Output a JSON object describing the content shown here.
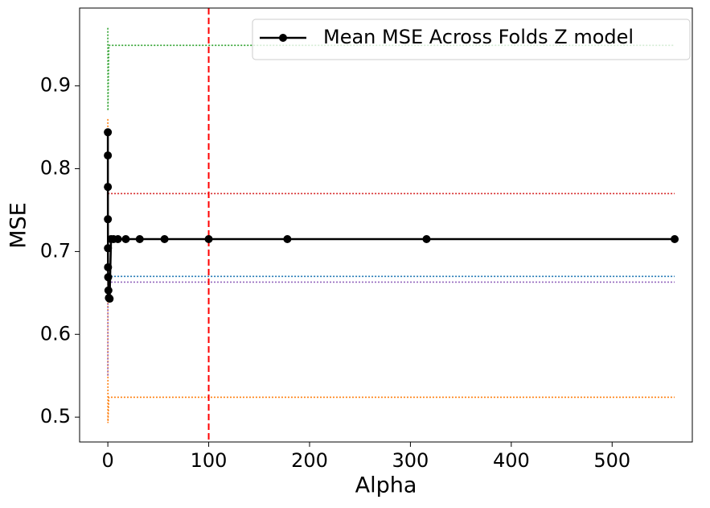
{
  "chart_data": {
    "type": "line",
    "x_label": "Alpha",
    "y_label": "MSE",
    "xlim": [
      -28,
      579.5
    ],
    "ylim": [
      0.47,
      0.994
    ],
    "xticks": [
      0,
      100,
      200,
      300,
      400,
      500
    ],
    "yticks": [
      0.5,
      0.6,
      0.7,
      0.8,
      0.9
    ],
    "legend": "upper right",
    "series": [
      {
        "name": "Mean MSE Across Folds Z model",
        "color": "#000000",
        "x": [
          0.01,
          0.0178,
          0.0316,
          0.0562,
          0.1,
          0.178,
          0.316,
          0.562,
          1,
          1.78,
          3.16,
          5.62,
          10,
          17.8,
          31.6,
          56.2,
          100,
          178,
          316,
          562
        ],
        "values": [
          0.844,
          0.816,
          0.778,
          0.739,
          0.704,
          0.681,
          0.669,
          0.653,
          0.644,
          0.643,
          0.715,
          0.715,
          0.715,
          0.715,
          0.715,
          0.715,
          0.715,
          0.715,
          0.715,
          0.715
        ]
      }
    ],
    "fold_lines": [
      {
        "color": "#2ca02c",
        "x": [
          0,
          0.1,
          1,
          562
        ],
        "values": [
          0.97,
          0.87,
          0.949,
          0.949
        ]
      },
      {
        "color": "#ff7f0e",
        "x": [
          0,
          0.1,
          1,
          562
        ],
        "values": [
          0.86,
          0.493,
          0.524,
          0.524
        ]
      },
      {
        "color": "#d62728",
        "x": [
          0,
          1,
          562
        ],
        "values": [
          0.77,
          0.77,
          0.77
        ]
      },
      {
        "color": "#1f77b4",
        "x": [
          0,
          1,
          562
        ],
        "values": [
          0.67,
          0.67,
          0.67
        ]
      },
      {
        "color": "#9467bd",
        "x": [
          0,
          0.1,
          1,
          562
        ],
        "values": [
          0.55,
          0.663,
          0.663,
          0.663
        ]
      }
    ],
    "vlines": [
      {
        "x": 100,
        "color": "#ff0000"
      }
    ]
  }
}
